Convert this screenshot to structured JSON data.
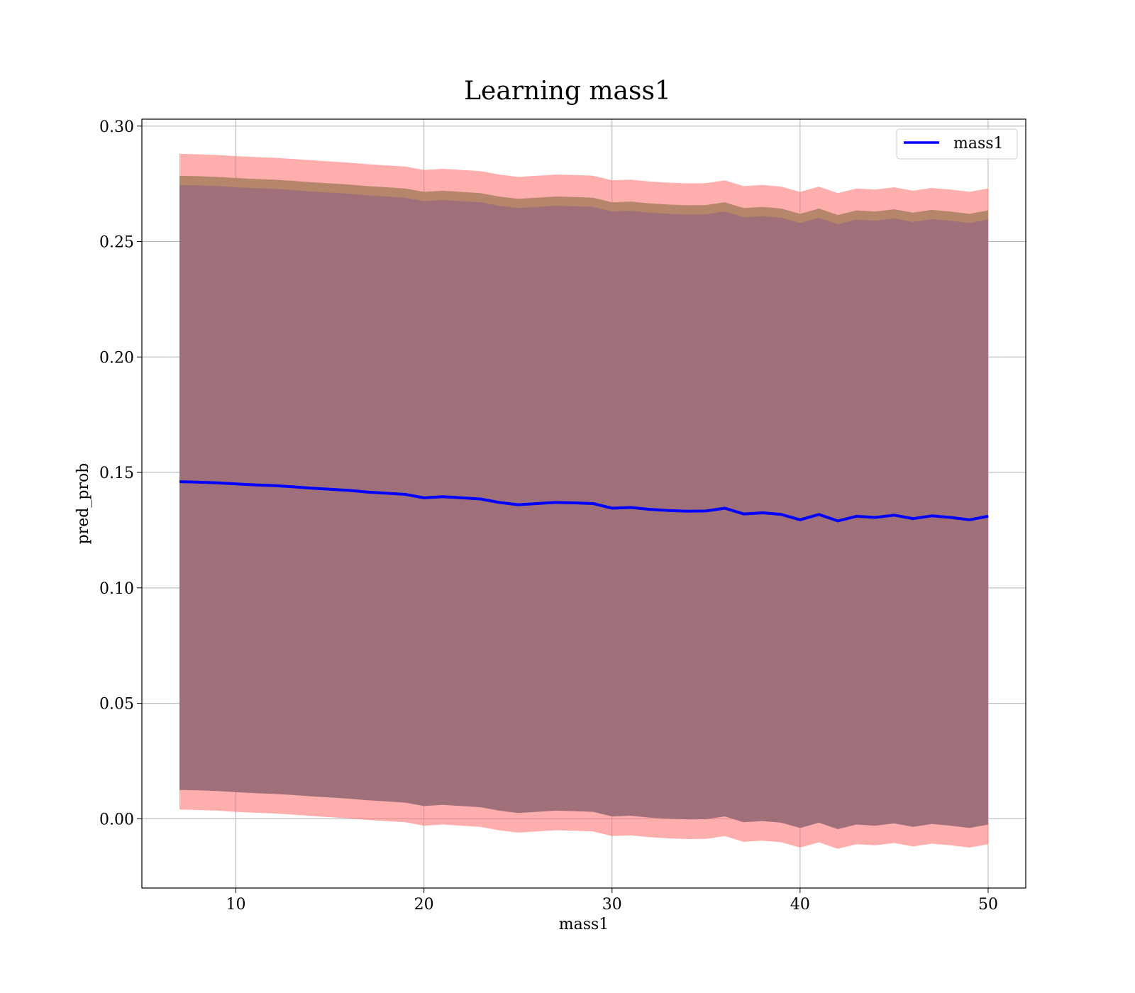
{
  "chart_data": {
    "type": "line",
    "title": "Learning mass1",
    "xlabel": "mass1",
    "ylabel": "pred_prob",
    "xlim": [
      5,
      52
    ],
    "ylim": [
      -0.03,
      0.303
    ],
    "xticks": [
      10,
      20,
      30,
      40,
      50
    ],
    "yticks": [
      0.0,
      0.05,
      0.1,
      0.15,
      0.2,
      0.25,
      0.3
    ],
    "ytick_labels": [
      "0.00",
      "0.05",
      "0.10",
      "0.15",
      "0.20",
      "0.25",
      "0.30"
    ],
    "xtick_labels": [
      "10",
      "20",
      "30",
      "40",
      "50"
    ],
    "grid": true,
    "legend_position": "top-right",
    "colors": {
      "line": "#0000ff",
      "outer_band": "#ff6b6b",
      "middle_band": "#b5866a",
      "inner_band": "#a0707a"
    },
    "x": [
      7,
      8,
      9,
      10,
      11,
      12,
      13,
      14,
      15,
      16,
      17,
      18,
      19,
      20,
      21,
      22,
      23,
      24,
      25,
      26,
      27,
      28,
      29,
      30,
      31,
      32,
      33,
      34,
      35,
      36,
      37,
      38,
      39,
      40,
      41,
      42,
      43,
      44,
      45,
      46,
      47,
      48,
      49,
      50
    ],
    "series": [
      {
        "name": "mass1",
        "values": [
          0.146,
          0.1458,
          0.1455,
          0.145,
          0.1446,
          0.1443,
          0.1438,
          0.1432,
          0.1427,
          0.1422,
          0.1415,
          0.141,
          0.1405,
          0.139,
          0.1395,
          0.139,
          0.1385,
          0.137,
          0.136,
          0.1365,
          0.137,
          0.1368,
          0.1365,
          0.1345,
          0.1348,
          0.134,
          0.1335,
          0.1332,
          0.1333,
          0.1345,
          0.132,
          0.1325,
          0.1318,
          0.1295,
          0.1318,
          0.129,
          0.131,
          0.1305,
          0.1315,
          0.13,
          0.1312,
          0.1305,
          0.1295,
          0.131
        ]
      }
    ],
    "bands": [
      {
        "upper": [
          0.288,
          0.2878,
          0.2875,
          0.287,
          0.2866,
          0.2863,
          0.2858,
          0.2852,
          0.2847,
          0.2842,
          0.2835,
          0.283,
          0.2825,
          0.281,
          0.2815,
          0.281,
          0.2805,
          0.279,
          0.278,
          0.2785,
          0.279,
          0.2788,
          0.2785,
          0.2765,
          0.2768,
          0.276,
          0.2755,
          0.2752,
          0.2753,
          0.2765,
          0.274,
          0.2745,
          0.2738,
          0.2715,
          0.2738,
          0.271,
          0.273,
          0.2725,
          0.2735,
          0.272,
          0.2732,
          0.2725,
          0.2715,
          0.273
        ],
        "lower": [
          0.004,
          0.0038,
          0.0035,
          0.003,
          0.0026,
          0.0023,
          0.0018,
          0.0012,
          0.0007,
          0.0002,
          -0.0005,
          -0.001,
          -0.0015,
          -0.003,
          -0.0025,
          -0.003,
          -0.0035,
          -0.005,
          -0.006,
          -0.0055,
          -0.005,
          -0.0052,
          -0.0055,
          -0.0075,
          -0.0072,
          -0.008,
          -0.0085,
          -0.0088,
          -0.0087,
          -0.0075,
          -0.01,
          -0.0095,
          -0.0102,
          -0.0125,
          -0.0102,
          -0.013,
          -0.011,
          -0.0115,
          -0.0105,
          -0.012,
          -0.0108,
          -0.0115,
          -0.0125,
          -0.011
        ]
      },
      {
        "upper": [
          0.2785,
          0.2783,
          0.278,
          0.2775,
          0.2771,
          0.2768,
          0.2763,
          0.2757,
          0.2752,
          0.2747,
          0.274,
          0.2735,
          0.273,
          0.2715,
          0.272,
          0.2715,
          0.271,
          0.2695,
          0.2685,
          0.269,
          0.2695,
          0.2693,
          0.269,
          0.267,
          0.2673,
          0.2665,
          0.266,
          0.2657,
          0.2658,
          0.267,
          0.2645,
          0.265,
          0.2643,
          0.262,
          0.2643,
          0.2615,
          0.2635,
          0.263,
          0.264,
          0.2625,
          0.2637,
          0.263,
          0.262,
          0.2635
        ],
        "lower": [
          0.0165,
          0.0163,
          0.016,
          0.0155,
          0.0151,
          0.0148,
          0.0143,
          0.0137,
          0.0132,
          0.0127,
          0.012,
          0.0115,
          0.011,
          0.0095,
          0.01,
          0.0095,
          0.009,
          0.0075,
          0.0065,
          0.007,
          0.0075,
          0.0073,
          0.007,
          0.005,
          0.0053,
          0.0045,
          0.004,
          0.0037,
          0.0038,
          0.005,
          0.0025,
          0.003,
          0.0023,
          0.0,
          0.0023,
          -0.0005,
          0.0015,
          0.001,
          0.002,
          0.0005,
          0.0017,
          0.001,
          0.0,
          0.0015
        ]
      },
      {
        "upper": [
          0.2745,
          0.2743,
          0.274,
          0.2735,
          0.2731,
          0.2728,
          0.2723,
          0.2717,
          0.2712,
          0.2707,
          0.27,
          0.2695,
          0.269,
          0.2675,
          0.268,
          0.2675,
          0.267,
          0.2655,
          0.2645,
          0.265,
          0.2655,
          0.2653,
          0.265,
          0.263,
          0.2633,
          0.2625,
          0.262,
          0.2617,
          0.2618,
          0.263,
          0.2605,
          0.261,
          0.2603,
          0.258,
          0.2603,
          0.2575,
          0.2595,
          0.259,
          0.26,
          0.2585,
          0.2597,
          0.259,
          0.258,
          0.2595
        ],
        "lower": [
          0.0125,
          0.0123,
          0.012,
          0.0115,
          0.0111,
          0.0108,
          0.0103,
          0.0097,
          0.0092,
          0.0087,
          0.008,
          0.0075,
          0.007,
          0.0055,
          0.006,
          0.0055,
          0.005,
          0.0035,
          0.0025,
          0.003,
          0.0035,
          0.0033,
          0.003,
          0.001,
          0.0013,
          0.0005,
          0.0,
          -0.0003,
          -0.0002,
          0.001,
          -0.0015,
          -0.001,
          -0.0017,
          -0.004,
          -0.0017,
          -0.0045,
          -0.0025,
          -0.003,
          -0.002,
          -0.0035,
          -0.0023,
          -0.003,
          -0.004,
          -0.0025
        ]
      }
    ]
  }
}
